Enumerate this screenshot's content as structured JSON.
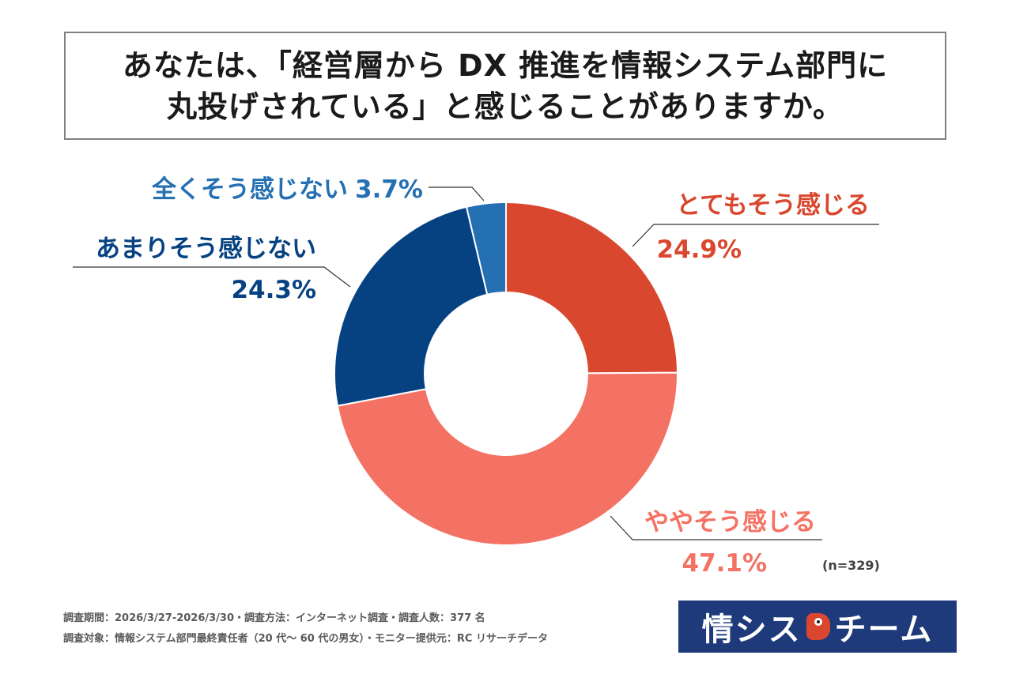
{
  "title": {
    "line1": "あなたは、「経営層から DX 推進を情報システム部門に",
    "line2": "丸投げされている」と感じることがありますか。"
  },
  "chart_data": {
    "type": "pie",
    "variant": "donut",
    "start": "top",
    "direction": "clockwise",
    "slices": [
      {
        "label": "とてもそう感じる",
        "value": 24.9,
        "value_label": "24.9%",
        "color": "#d9472e"
      },
      {
        "label": "ややそう感じる",
        "value": 47.1,
        "value_label": "47.1%",
        "color": "#f47264"
      },
      {
        "label": "あまりそう感じない",
        "value": 24.3,
        "value_label": "24.3%",
        "color": "#064282"
      },
      {
        "label": "全くそう感じない",
        "value": 3.7,
        "value_label": "3.7%",
        "color": "#2470b3"
      }
    ],
    "sample_note": "(n=329)"
  },
  "footnotes": {
    "line1": "調査期間：2026/3/27-2026/3/30・調査方法：インターネット調査・調査人数：377 名",
    "line2": "調査対象：情報システム部門最終責任者（20 代～ 60 代の男女）・モニター提供元：RC リサーチデータ"
  },
  "logo": {
    "left_text": "情シス",
    "right_text": "チーム"
  }
}
